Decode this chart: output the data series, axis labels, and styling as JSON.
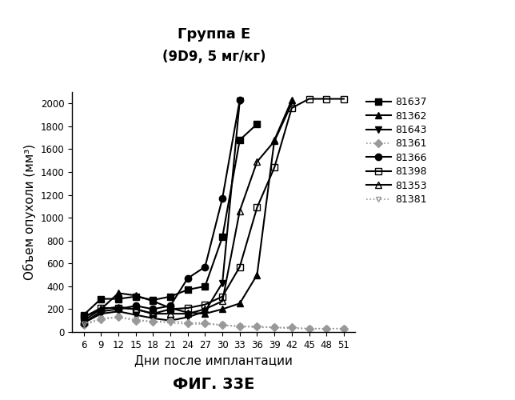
{
  "title_line1": "Группа Е",
  "title_line2": "(9D9, 5 мг/кг)",
  "xlabel": "Дни после имплантации",
  "ylabel": "Объем опухоли (мм³)",
  "fig_label": "ФИГ. 33Е",
  "ylim": [
    0,
    2100
  ],
  "yticks": [
    0,
    200,
    400,
    600,
    800,
    1000,
    1200,
    1400,
    1600,
    1800,
    2000
  ],
  "xticks": [
    6,
    9,
    12,
    15,
    18,
    21,
    24,
    27,
    30,
    33,
    36,
    39,
    42,
    45,
    48,
    51
  ],
  "series": [
    {
      "label": "81637",
      "marker": "s",
      "color": "#000000",
      "fillstyle": "full",
      "linestyle": "-",
      "linewidth": 1.5,
      "markersize": 6,
      "x": [
        6,
        9,
        12,
        15,
        18,
        21,
        24,
        27,
        30,
        33,
        36
      ],
      "y": [
        150,
        290,
        290,
        310,
        280,
        310,
        370,
        400,
        830,
        1680,
        1820
      ]
    },
    {
      "label": "81362",
      "marker": "^",
      "color": "#000000",
      "fillstyle": "full",
      "linestyle": "-",
      "linewidth": 1.5,
      "markersize": 6,
      "x": [
        6,
        9,
        12,
        15,
        18,
        21,
        24,
        27,
        30,
        33,
        36,
        39,
        42
      ],
      "y": [
        130,
        200,
        340,
        320,
        270,
        210,
        170,
        160,
        200,
        250,
        500,
        1680,
        2030
      ]
    },
    {
      "label": "81643",
      "marker": "v",
      "color": "#000000",
      "fillstyle": "full",
      "linestyle": "-",
      "linewidth": 1.5,
      "markersize": 6,
      "x": [
        6,
        9,
        12,
        15,
        18,
        21,
        24,
        27,
        30,
        33
      ],
      "y": [
        80,
        160,
        180,
        150,
        120,
        100,
        130,
        180,
        430,
        2020
      ]
    },
    {
      "label": "81361",
      "marker": "D",
      "color": "#999999",
      "fillstyle": "full",
      "linestyle": ":",
      "linewidth": 1.2,
      "markersize": 5,
      "x": [
        6,
        9,
        12,
        15,
        18,
        21,
        24,
        27,
        30,
        33,
        36,
        39,
        42,
        45,
        48,
        51
      ],
      "y": [
        60,
        110,
        130,
        100,
        90,
        100,
        80,
        80,
        60,
        50,
        50,
        40,
        40,
        30,
        30,
        30
      ]
    },
    {
      "label": "81366",
      "marker": "o",
      "color": "#000000",
      "fillstyle": "full",
      "linestyle": "-",
      "linewidth": 1.5,
      "markersize": 6,
      "x": [
        6,
        9,
        12,
        15,
        18,
        21,
        24,
        27,
        30,
        33
      ],
      "y": [
        80,
        180,
        200,
        230,
        200,
        230,
        470,
        570,
        1170,
        2030
      ]
    },
    {
      "label": "81398",
      "marker": "s",
      "color": "#000000",
      "fillstyle": "none",
      "linestyle": "-",
      "linewidth": 1.5,
      "markersize": 6,
      "x": [
        6,
        9,
        12,
        15,
        18,
        21,
        24,
        27,
        30,
        33,
        36,
        39,
        42,
        45,
        48,
        51
      ],
      "y": [
        130,
        210,
        210,
        200,
        160,
        200,
        210,
        240,
        310,
        570,
        1090,
        1440,
        1960,
        2040,
        2040,
        2040
      ]
    },
    {
      "label": "81353",
      "marker": "^",
      "color": "#000000",
      "fillstyle": "none",
      "linestyle": "-",
      "linewidth": 1.5,
      "markersize": 6,
      "x": [
        6,
        9,
        12,
        15,
        18,
        21,
        24,
        27,
        30,
        33,
        36,
        39,
        42
      ],
      "y": [
        100,
        200,
        220,
        200,
        160,
        160,
        160,
        200,
        270,
        1060,
        1490,
        1670,
        2000
      ]
    },
    {
      "label": "81381",
      "marker": "v",
      "color": "#999999",
      "fillstyle": "none",
      "linestyle": ":",
      "linewidth": 1.2,
      "markersize": 5,
      "x": [
        6,
        9,
        12,
        15,
        18,
        21,
        24,
        27,
        30,
        33,
        36,
        39,
        42,
        45,
        48,
        51
      ],
      "y": [
        70,
        120,
        130,
        110,
        90,
        80,
        70,
        70,
        60,
        50,
        40,
        40,
        30,
        30,
        30,
        30
      ]
    }
  ]
}
